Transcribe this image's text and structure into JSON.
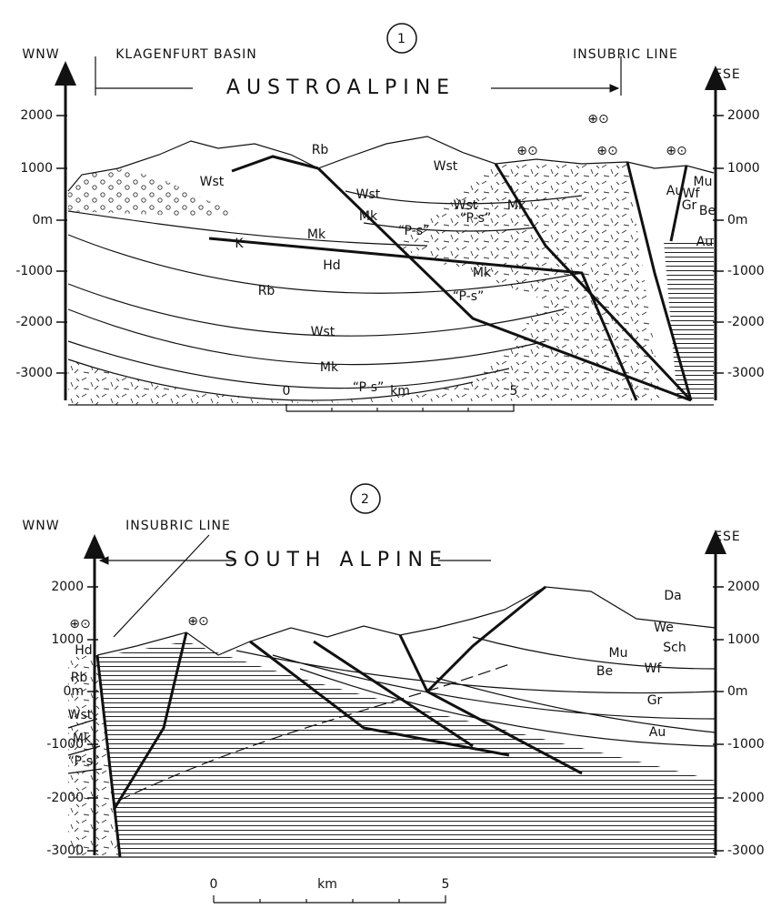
{
  "sections": [
    {
      "number": "1",
      "left_direction": "WNW",
      "right_direction": "ESE",
      "banner": "AUSTROALPINE",
      "labels": [
        "KLAGENFURT BASIN",
        "INSUBRIC LINE"
      ],
      "left_axis": [
        "2000",
        "1000",
        "0m",
        "-1000",
        "-2000",
        "-3000"
      ],
      "right_axis": [
        "2000",
        "1000",
        "0m",
        "-1000",
        "-2000",
        "-3000"
      ],
      "units": [
        "Rb",
        "Wst",
        "Wst",
        "Wst",
        "Mk",
        "“P-s”",
        "Wst",
        "Mk",
        "“P-s”",
        "Mk",
        "K",
        "Hd",
        "Mk",
        "Rb",
        "“P-s”",
        "Wst",
        "Mk",
        "“P-s”",
        "Au",
        "Mu",
        "Wf",
        "Gr",
        "Be",
        "Au"
      ],
      "symbols": [
        "⊕⊙",
        "⊕⊙",
        "⊕⊙",
        "⊕⊙"
      ],
      "scale": {
        "start": "0",
        "unit": "km",
        "end": "5"
      }
    },
    {
      "number": "2",
      "left_direction": "WNW",
      "right_direction": "ESE",
      "banner": "SOUTH ALPINE",
      "labels": [
        "INSUBRIC LINE"
      ],
      "left_axis": [
        "2000",
        "1000",
        "0m",
        "-1000",
        "-2000",
        "-3000"
      ],
      "right_axis": [
        "2000",
        "1000",
        "0m",
        "-1000",
        "-2000",
        "-3000"
      ],
      "units": [
        "Hd",
        "Rb",
        "Wst",
        "Mk",
        "“P-s”",
        "Da",
        "We",
        "Sch",
        "Mu",
        "Wf",
        "Be",
        "Gr",
        "Au"
      ],
      "symbols": [
        "⊕⊙",
        "⊕⊙"
      ],
      "scale": {
        "start": "0",
        "unit": "km",
        "end": "5"
      }
    }
  ]
}
